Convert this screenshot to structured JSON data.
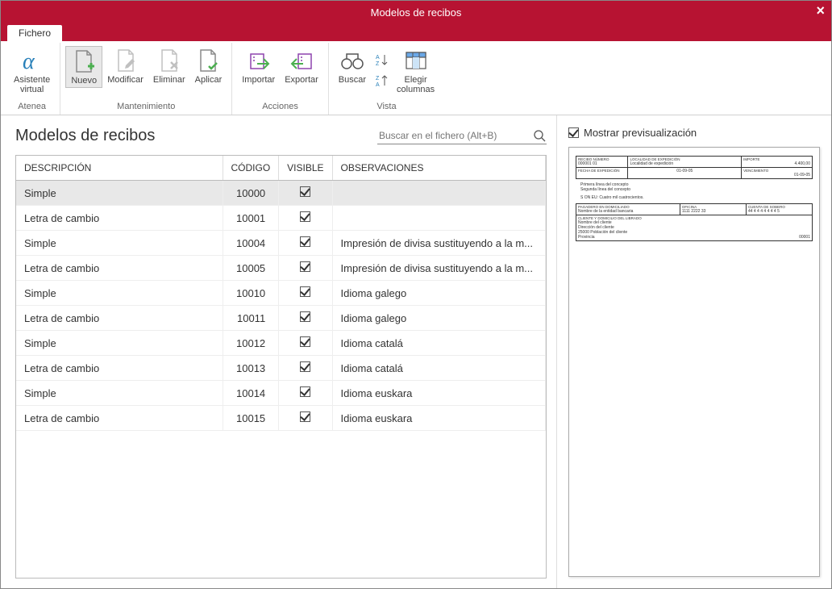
{
  "window": {
    "title": "Modelos de recibos"
  },
  "tabs": {
    "fichero": "Fichero"
  },
  "ribbon": {
    "atenea": {
      "label": "Asistente\nvirtual",
      "group": "Atenea"
    },
    "mantenimiento": {
      "group": "Mantenimiento",
      "nuevo": "Nuevo",
      "modificar": "Modificar",
      "eliminar": "Eliminar",
      "aplicar": "Aplicar"
    },
    "acciones": {
      "group": "Acciones",
      "importar": "Importar",
      "exportar": "Exportar"
    },
    "vista": {
      "group": "Vista",
      "buscar": "Buscar",
      "elegir": "Elegir\ncolumnas"
    }
  },
  "left": {
    "title": "Modelos de recibos",
    "search_placeholder": "Buscar en el fichero (Alt+B)"
  },
  "columns": {
    "descripcion": "DESCRIPCIÓN",
    "codigo": "CÓDIGO",
    "visible": "VISIBLE",
    "observaciones": "OBSERVACIONES"
  },
  "rows": [
    {
      "desc": "Simple",
      "codigo": "10000",
      "visible": true,
      "obs": "",
      "selected": true
    },
    {
      "desc": "Letra de cambio",
      "codigo": "10001",
      "visible": true,
      "obs": ""
    },
    {
      "desc": "Simple",
      "codigo": "10004",
      "visible": true,
      "obs": "Impresión de divisa sustituyendo a la m..."
    },
    {
      "desc": "Letra de cambio",
      "codigo": "10005",
      "visible": true,
      "obs": "Impresión de divisa sustituyendo a la m..."
    },
    {
      "desc": "Simple",
      "codigo": "10010",
      "visible": true,
      "obs": "Idioma galego"
    },
    {
      "desc": "Letra de cambio",
      "codigo": "10011",
      "visible": true,
      "obs": "Idioma galego"
    },
    {
      "desc": "Simple",
      "codigo": "10012",
      "visible": true,
      "obs": "Idioma catalá"
    },
    {
      "desc": "Letra de cambio",
      "codigo": "10013",
      "visible": true,
      "obs": "Idioma catalá"
    },
    {
      "desc": "Simple",
      "codigo": "10014",
      "visible": true,
      "obs": "Idioma euskara"
    },
    {
      "desc": "Letra de cambio",
      "codigo": "10015",
      "visible": true,
      "obs": "Idioma euskara"
    }
  ],
  "right": {
    "toggle_label": "Mostrar previsualización",
    "toggle_checked": true
  },
  "receipt": {
    "recibo_numero_label": "RECIBO NÚMERO",
    "recibo_numero": "000001   01",
    "localidad_label": "LOCALIDAD DE EXPEDICIÓN",
    "localidad": "Localidad de expedición",
    "importe_label": "IMPORTE",
    "importe": "4.400,00",
    "fecha_exp_label": "FECHA DE EXPEDICIÓN",
    "fecha_exp": "01-09-05",
    "venc_label": "VENCIMIENTO",
    "venc": "01-09-05",
    "linea1": "Primera línea del concepto",
    "linea2": "Segunda línea del concepto",
    "son": "S ON EU:  Cuatro mil cuatrocientos.",
    "pagadero_label": "PAGADERO EN DOMICILIADO",
    "entidad": "Nombre de la entidad bancaria",
    "oficina_label": "OFICINA",
    "oficina": "1111  2222  33",
    "cuenta_label": "CUENTA DE SOBERO",
    "cuenta": "44 4 4 4 4 4 4 4 5",
    "cliente_label": "CLIENTE Y DOMICILIO DEL LIBRADO",
    "cliente_nombre": "Nombre del cliente",
    "cliente_dir": "Dirección del cliente",
    "cliente_pob": "25000  Población del cliente",
    "cliente_prov": "Provincia",
    "cliente_num": "00001"
  },
  "colors": {
    "brand": "#b71332",
    "icon_gray": "#8a8a8a",
    "icon_green": "#4caf50",
    "icon_purple": "#8e44ad",
    "icon_blue": "#2980b9"
  }
}
